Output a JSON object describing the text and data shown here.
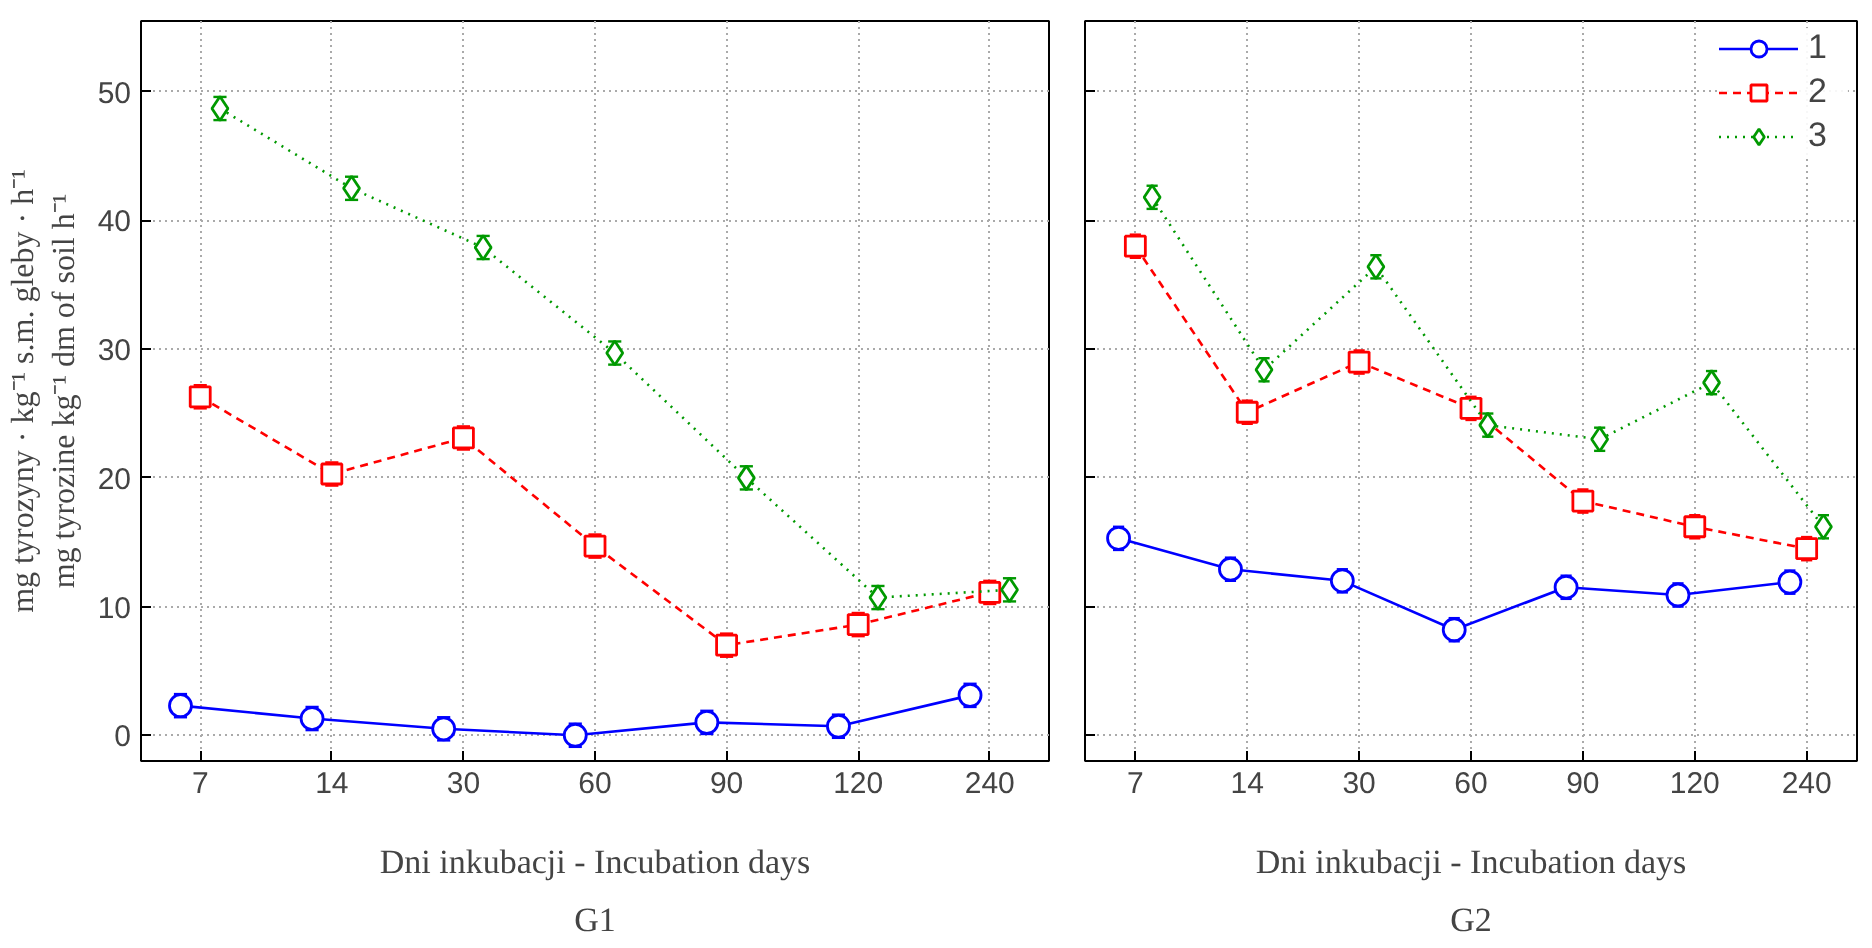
{
  "chart_data": [
    {
      "type": "line",
      "title": "G1",
      "xlabel": "Dni inkubacji - Incubation days",
      "ylabel": "mg tyrozyny · kg⁻¹ s.m. gleby · h⁻¹\nmg tyrozine kg⁻¹ dm of soil h⁻¹",
      "categories": [
        "7",
        "14",
        "30",
        "60",
        "90",
        "120",
        "240"
      ],
      "ylim": [
        -2,
        55.5
      ],
      "yticks": [
        0,
        10,
        20,
        30,
        40,
        50
      ],
      "grid": true,
      "legend": false,
      "series": [
        {
          "color": "#0000ff",
          "marker": "circle",
          "line_style": "solid",
          "values": [
            2.3,
            1.3,
            0.5,
            0.0,
            1.0,
            0.7,
            3.1
          ],
          "errors": [
            0.9,
            0.9,
            0.9,
            0.9,
            0.9,
            0.9,
            0.9
          ]
        },
        {
          "color": "#ff0000",
          "marker": "square",
          "line_style": "dashed",
          "values": [
            26.3,
            20.3,
            23.1,
            14.7,
            7.0,
            8.6,
            11.1
          ],
          "errors": [
            0.9,
            0.9,
            0.9,
            0.9,
            0.9,
            0.9,
            0.9
          ]
        },
        {
          "color": "#009900",
          "marker": "diamond",
          "line_style": "dotted",
          "values": [
            48.7,
            42.5,
            37.9,
            29.7,
            20.0,
            10.7,
            11.3
          ],
          "errors": [
            0.9,
            0.9,
            0.9,
            0.9,
            0.9,
            0.9,
            0.9
          ]
        }
      ]
    },
    {
      "type": "line",
      "title": "G2",
      "xlabel": "Dni inkubacji - Incubation days",
      "categories": [
        "7",
        "14",
        "30",
        "60",
        "90",
        "120",
        "240"
      ],
      "ylim": [
        -2,
        55.5
      ],
      "yticks": [
        0,
        10,
        20,
        30,
        40,
        50
      ],
      "grid": true,
      "legend": "top right",
      "tick_labels": "x",
      "series": [
        {
          "name": "1",
          "color": "#0000ff",
          "marker": "circle",
          "line_style": "solid",
          "values": [
            15.3,
            12.9,
            12.0,
            8.2,
            11.5,
            10.9,
            11.9
          ],
          "errors": [
            0.9,
            0.9,
            0.9,
            0.9,
            0.9,
            0.9,
            0.9
          ]
        },
        {
          "name": "2",
          "color": "#ff0000",
          "marker": "square",
          "line_style": "dashed",
          "values": [
            38.0,
            25.1,
            29.0,
            25.4,
            18.2,
            16.2,
            14.5
          ],
          "errors": [
            0.9,
            0.9,
            0.9,
            0.9,
            0.9,
            0.9,
            0.9
          ]
        },
        {
          "name": "3",
          "color": "#009900",
          "marker": "diamond",
          "line_style": "dotted",
          "values": [
            41.8,
            28.4,
            36.4,
            24.1,
            23.0,
            27.4,
            16.2
          ],
          "errors": [
            0.9,
            0.9,
            0.9,
            0.9,
            0.9,
            0.9,
            0.9
          ]
        }
      ]
    }
  ]
}
